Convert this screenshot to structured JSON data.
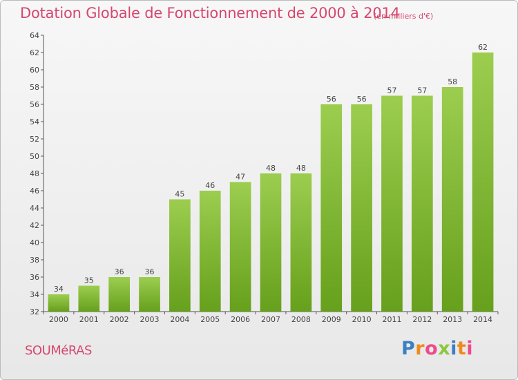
{
  "header": {
    "title": "Dotation Globale de Fonctionnement de 2000 à 2014",
    "subtitle": "(en milliers d'€)"
  },
  "footer": {
    "commune": "SOUMéRAS",
    "logo_letters": [
      "P",
      "r",
      "o",
      "x",
      "i",
      "t",
      "i"
    ]
  },
  "colors": {
    "bar_top": "#9ccd4f",
    "bar_bottom": "#66a01c",
    "title": "#d6476d"
  },
  "chart_data": {
    "type": "bar",
    "title": "Dotation Globale de Fonctionnement de 2000 à 2014",
    "subtitle": "(en milliers d'€)",
    "categories": [
      "2000",
      "2001",
      "2002",
      "2003",
      "2004",
      "2005",
      "2006",
      "2007",
      "2008",
      "2009",
      "2010",
      "2011",
      "2012",
      "2013",
      "2014"
    ],
    "values": [
      34,
      35,
      36,
      36,
      45,
      46,
      47,
      48,
      48,
      56,
      56,
      57,
      57,
      58,
      62
    ],
    "ylim": [
      32,
      64
    ],
    "yticks": [
      32,
      34,
      36,
      38,
      40,
      42,
      44,
      46,
      48,
      50,
      52,
      54,
      56,
      58,
      60,
      62,
      64
    ],
    "grid": false,
    "legend": "none"
  }
}
